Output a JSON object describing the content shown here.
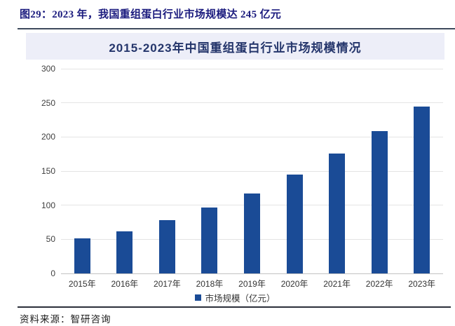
{
  "header": {
    "caption": "图29：2023 年，我国重组蛋白行业市场规模达 245 亿元"
  },
  "chart": {
    "title": "2015-2023年中国重组蛋白行业市场规模情况",
    "legend_label": "市场规模（亿元）"
  },
  "footer": {
    "source": "资料来源：智研咨询"
  },
  "colors": {
    "bar": "#1a4b96",
    "title_band_bg": "#edeef8",
    "caption_text": "#1b1b7e"
  },
  "chart_data": {
    "type": "bar",
    "title": "2015-2023年中国重组蛋白行业市场规模情况",
    "categories": [
      "2015年",
      "2016年",
      "2017年",
      "2018年",
      "2019年",
      "2020年",
      "2021年",
      "2022年",
      "2023年"
    ],
    "values": [
      51,
      62,
      78,
      97,
      117,
      145,
      176,
      209,
      245
    ],
    "series_name": "市场规模（亿元）",
    "xlabel": "",
    "ylabel": "",
    "ylim": [
      0,
      300
    ],
    "ytick_step": 50,
    "grid": true,
    "legend_position": "bottom"
  }
}
